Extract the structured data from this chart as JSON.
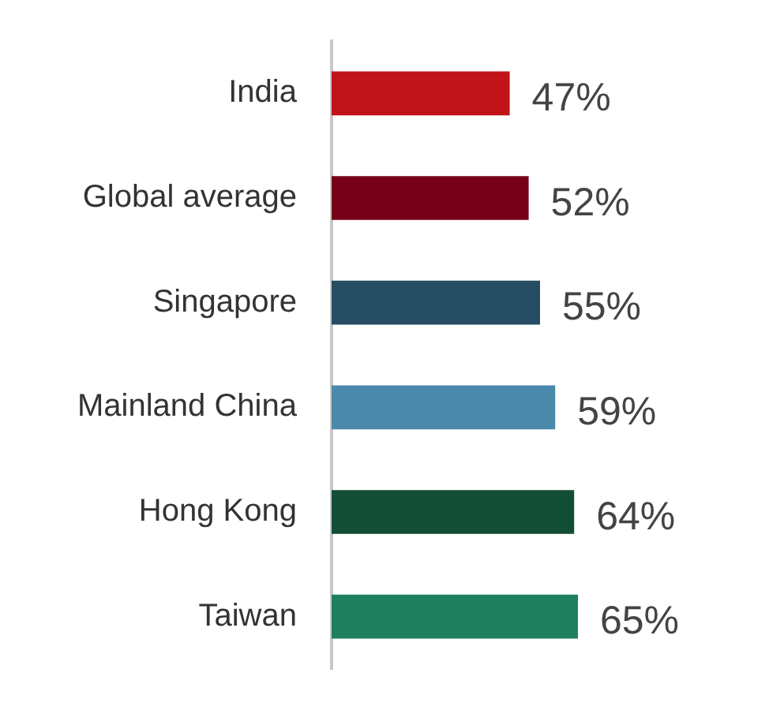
{
  "chart_data": {
    "type": "bar",
    "orientation": "horizontal",
    "categories": [
      "India",
      "Global average",
      "Singapore",
      "Mainland China",
      "Hong Kong",
      "Taiwan"
    ],
    "values": [
      47,
      52,
      55,
      59,
      64,
      65
    ],
    "colors": [
      "#c0141a",
      "#760017",
      "#264d63",
      "#4a89ab",
      "#124d36",
      "#1f8060"
    ],
    "value_labels": [
      "47%",
      "52%",
      "55%",
      "59%",
      "64%",
      "65%"
    ],
    "grid": false,
    "legend": false,
    "tick_labels": "y"
  }
}
